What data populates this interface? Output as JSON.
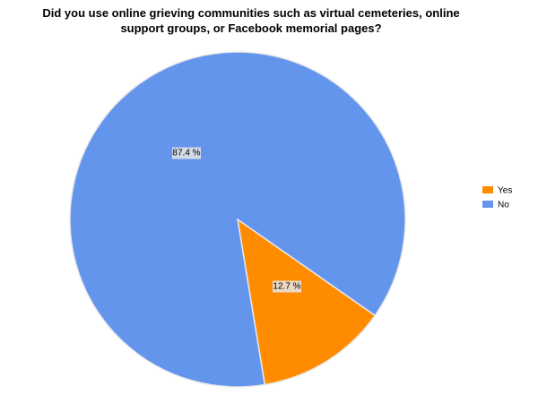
{
  "chart_data": {
    "type": "pie",
    "title": "Did you use online grieving communities such as virtual cemeteries, online\nsupport groups, or Facebook memorial pages?",
    "slices": [
      {
        "label": "Yes",
        "value": 12.7,
        "display": "12.7 %",
        "color": "#ff8c00"
      },
      {
        "label": "No",
        "value": 87.4,
        "display": "87.4 %",
        "color": "#6495ed"
      }
    ],
    "legend_position": "right"
  }
}
